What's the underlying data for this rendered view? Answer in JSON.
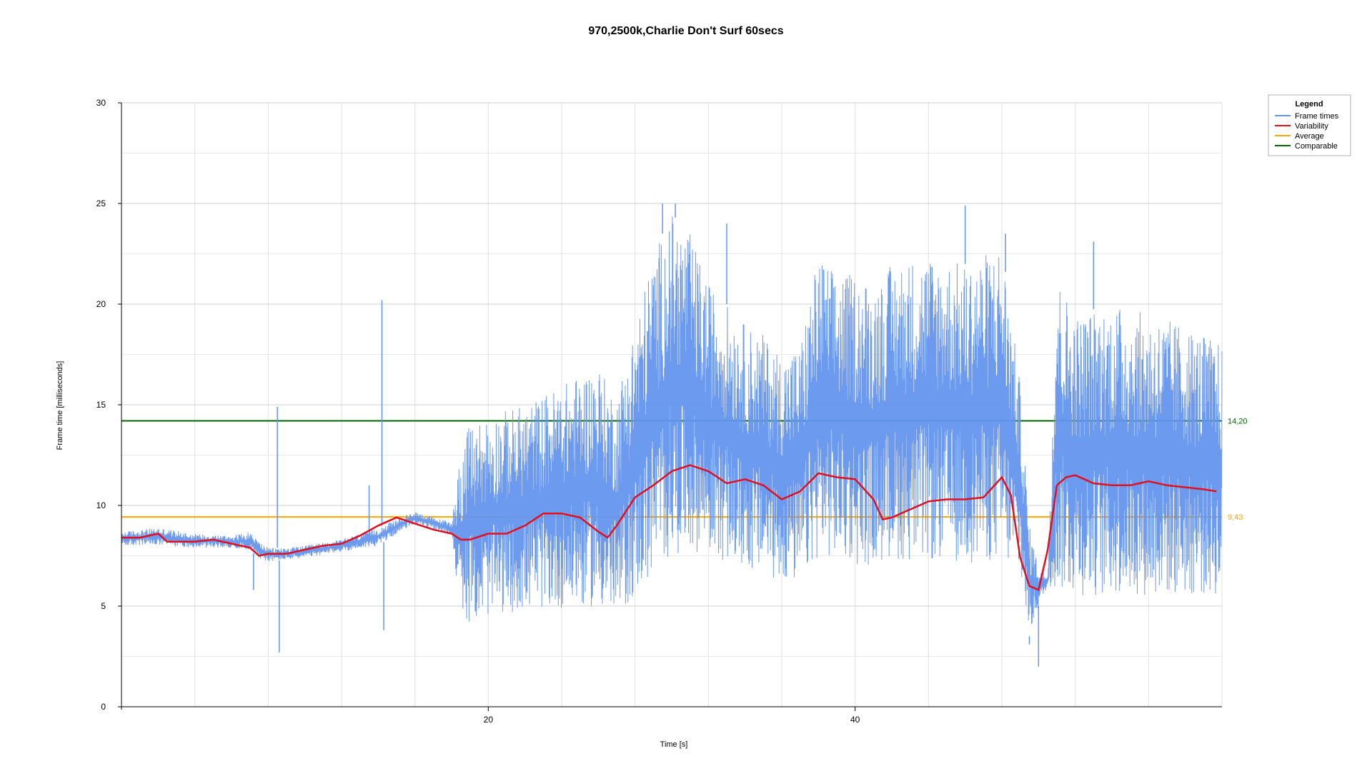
{
  "chart_data": {
    "type": "line",
    "title": "970,2500k,Charlie Don't Surf 60secs",
    "xlabel": "Time [s]",
    "ylabel": "Frame time [milliseconds]",
    "xlim": [
      0,
      60
    ],
    "ylim": [
      0,
      30
    ],
    "x_ticks": [
      20,
      40
    ],
    "y_ticks": [
      0,
      5,
      10,
      15,
      20,
      25,
      30
    ],
    "grid": true,
    "legend": {
      "title": "Legend",
      "placement": "top-right",
      "entries": [
        {
          "name": "Frame times",
          "color": "#6495ED"
        },
        {
          "name": "Variability",
          "color": "#E0101E"
        },
        {
          "name": "Average",
          "color": "#FFA500"
        },
        {
          "name": "Comparable",
          "color": "#006400"
        }
      ]
    },
    "reference_lines": [
      {
        "name": "Average",
        "value": 9.43,
        "label": "9,43",
        "color": "#FFA500"
      },
      {
        "name": "Comparable",
        "value": 14.2,
        "label": "14,20",
        "color": "#006400"
      }
    ],
    "series": [
      {
        "name": "Frame times",
        "color": "#6495ED",
        "envelope": {
          "x": [
            0,
            2,
            4,
            6,
            7,
            7.5,
            8,
            9,
            10,
            12,
            14,
            15,
            16,
            17,
            18,
            18.5,
            19,
            20,
            22,
            24,
            26,
            26.5,
            27,
            28,
            29,
            30,
            31,
            32,
            33,
            34,
            35,
            36,
            37,
            38,
            39,
            40,
            41,
            42,
            44,
            46,
            48,
            49,
            49.5,
            50,
            50.5,
            51,
            52,
            54,
            56,
            58,
            60
          ],
          "low": [
            8.0,
            8.0,
            7.9,
            7.9,
            7.8,
            7.4,
            7.2,
            7.3,
            7.4,
            7.7,
            8.0,
            8.6,
            9.1,
            8.8,
            8.5,
            4.5,
            4.2,
            4.5,
            4.8,
            4.9,
            5.0,
            4.6,
            4.3,
            5.5,
            6.5,
            7.5,
            7.8,
            7.5,
            7.2,
            6.8,
            6.5,
            6.2,
            6.0,
            7.5,
            7.3,
            7.0,
            7.0,
            7.3,
            7.2,
            7.1,
            7.2,
            6.5,
            3.5,
            5.0,
            6.0,
            5.8,
            5.5,
            5.5,
            5.5,
            5.5,
            5.5
          ],
          "high": [
            8.7,
            8.9,
            8.6,
            8.5,
            8.7,
            8.2,
            7.9,
            7.9,
            8.0,
            8.3,
            8.9,
            9.3,
            9.7,
            9.4,
            9.2,
            12.8,
            14.0,
            14.5,
            15.0,
            16.0,
            17.0,
            16.0,
            15.5,
            19.0,
            22.5,
            24.5,
            23.5,
            21.0,
            20.0,
            19.0,
            18.5,
            17.5,
            18.0,
            22.5,
            21.5,
            21.5,
            21.0,
            22.0,
            22.5,
            22.0,
            23.0,
            16.0,
            9.0,
            7.0,
            6.5,
            21.5,
            19.5,
            20.0,
            19.5,
            19.0,
            18.0
          ]
        },
        "spikes": [
          {
            "x": 7.2,
            "value": 5.8
          },
          {
            "x": 8.5,
            "value": 14.9
          },
          {
            "x": 8.6,
            "value": 2.7
          },
          {
            "x": 14.2,
            "value": 20.2
          },
          {
            "x": 14.3,
            "value": 3.8
          },
          {
            "x": 13.5,
            "value": 11.0
          },
          {
            "x": 29.5,
            "value": 25.0
          },
          {
            "x": 30.2,
            "value": 25.0
          },
          {
            "x": 33.0,
            "value": 24.0
          },
          {
            "x": 46.0,
            "value": 24.9
          },
          {
            "x": 48.2,
            "value": 23.5
          },
          {
            "x": 49.5,
            "value": 3.1
          },
          {
            "x": 50.0,
            "value": 2.0
          },
          {
            "x": 53.0,
            "value": 23.1
          }
        ]
      },
      {
        "name": "Variability",
        "color": "#E0101E",
        "x": [
          0,
          1,
          2,
          2.5,
          3,
          4,
          5,
          6,
          7,
          7.5,
          8,
          9,
          10,
          11,
          12,
          13,
          14,
          15,
          16,
          17,
          18,
          18.5,
          19,
          20,
          21,
          22,
          23,
          24,
          25,
          26,
          26.5,
          27,
          28,
          29,
          30,
          31,
          32,
          33,
          34,
          35,
          36,
          37,
          38,
          39,
          40,
          41,
          41.5,
          42,
          43,
          44,
          45,
          46,
          47,
          48,
          48.5,
          49,
          49.5,
          50,
          50.5,
          51,
          51.5,
          52,
          53,
          54,
          55,
          56,
          57,
          58,
          59,
          59.7
        ],
        "values": [
          8.4,
          8.4,
          8.6,
          8.2,
          8.2,
          8.2,
          8.3,
          8.1,
          7.9,
          7.5,
          7.6,
          7.6,
          7.8,
          8.0,
          8.1,
          8.5,
          9.0,
          9.4,
          9.1,
          8.8,
          8.6,
          8.3,
          8.3,
          8.6,
          8.6,
          9.0,
          9.6,
          9.6,
          9.4,
          8.7,
          8.4,
          9.0,
          10.4,
          11.0,
          11.7,
          12.0,
          11.7,
          11.1,
          11.3,
          11.0,
          10.3,
          10.7,
          11.6,
          11.4,
          11.3,
          10.3,
          9.3,
          9.4,
          9.8,
          10.2,
          10.3,
          10.3,
          10.4,
          11.4,
          10.5,
          7.4,
          6.0,
          5.8,
          7.8,
          11.0,
          11.4,
          11.5,
          11.1,
          11.0,
          11.0,
          11.2,
          11.0,
          10.9,
          10.8,
          10.7
        ]
      }
    ]
  }
}
